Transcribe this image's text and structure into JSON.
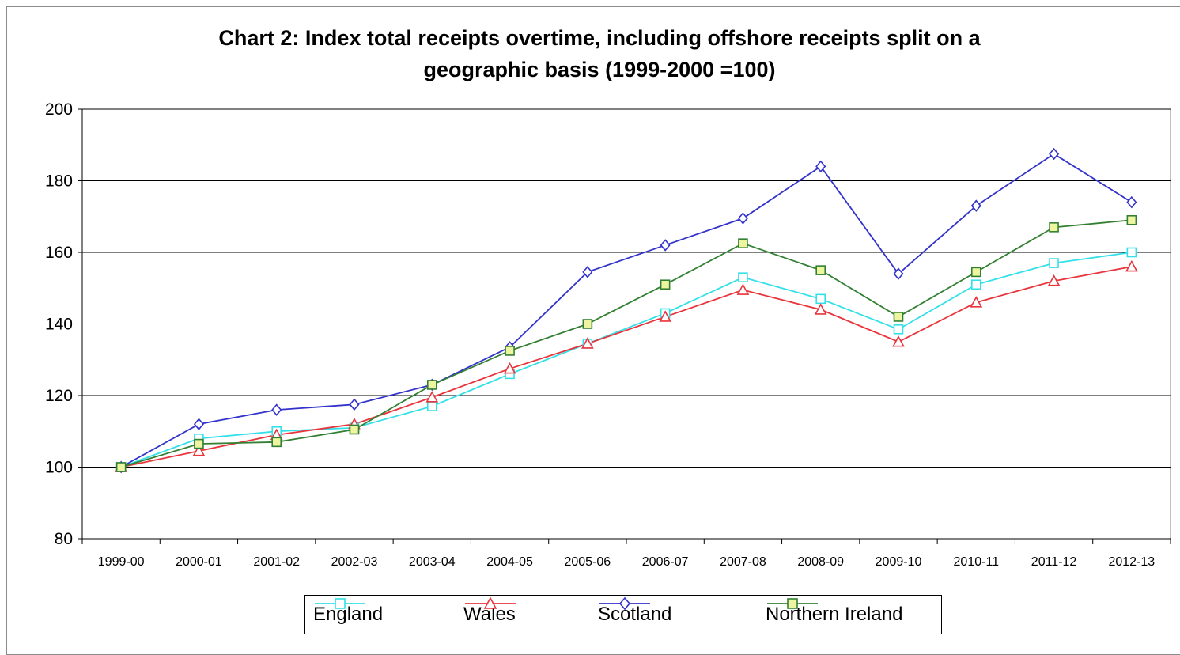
{
  "chart_data": {
    "type": "line",
    "title_lines": [
      "Chart 2: Index total receipts overtime, including offshore receipts split on a",
      "geographic basis (1999-2000 =100)"
    ],
    "xlabel": "",
    "ylabel": "",
    "ylim": [
      80,
      200
    ],
    "yticks": [
      "80",
      "100",
      "120",
      "140",
      "160",
      "180",
      "200"
    ],
    "ytick_values": [
      80,
      100,
      120,
      140,
      160,
      180,
      200
    ],
    "grid": true,
    "legend_position": "bottom",
    "categories": [
      "1999-00",
      "2000-01",
      "2001-02",
      "2002-03",
      "2003-04",
      "2004-05",
      "2005-06",
      "2006-07",
      "2007-08",
      "2008-09",
      "2009-10",
      "2010-11",
      "2011-12",
      "2012-13"
    ],
    "series": [
      {
        "name": "England",
        "color": "#33e0e8",
        "marker": "square-hollow",
        "values": [
          100,
          108,
          110,
          111,
          117,
          126,
          134.5,
          143,
          153,
          147,
          138.5,
          151,
          157,
          160
        ]
      },
      {
        "name": "Wales",
        "color": "#e8343c",
        "marker": "triangle-hollow",
        "values": [
          100,
          104.5,
          109,
          112,
          119.5,
          127.5,
          134.5,
          142,
          149.5,
          144,
          135,
          146,
          152,
          156
        ]
      },
      {
        "name": "Scotland",
        "color": "#3333cc",
        "marker": "diamond-hollow",
        "values": [
          100,
          112,
          116,
          117.5,
          123,
          133.5,
          154.5,
          162,
          169.5,
          184,
          154,
          173,
          187.5,
          174
        ]
      },
      {
        "name": "Northern Ireland",
        "color": "#338033",
        "marker": "square-hollow-green",
        "values": [
          100,
          106.5,
          107,
          110.5,
          123,
          132.5,
          140,
          151,
          162.5,
          155,
          142,
          154.5,
          167,
          169
        ]
      }
    ]
  }
}
